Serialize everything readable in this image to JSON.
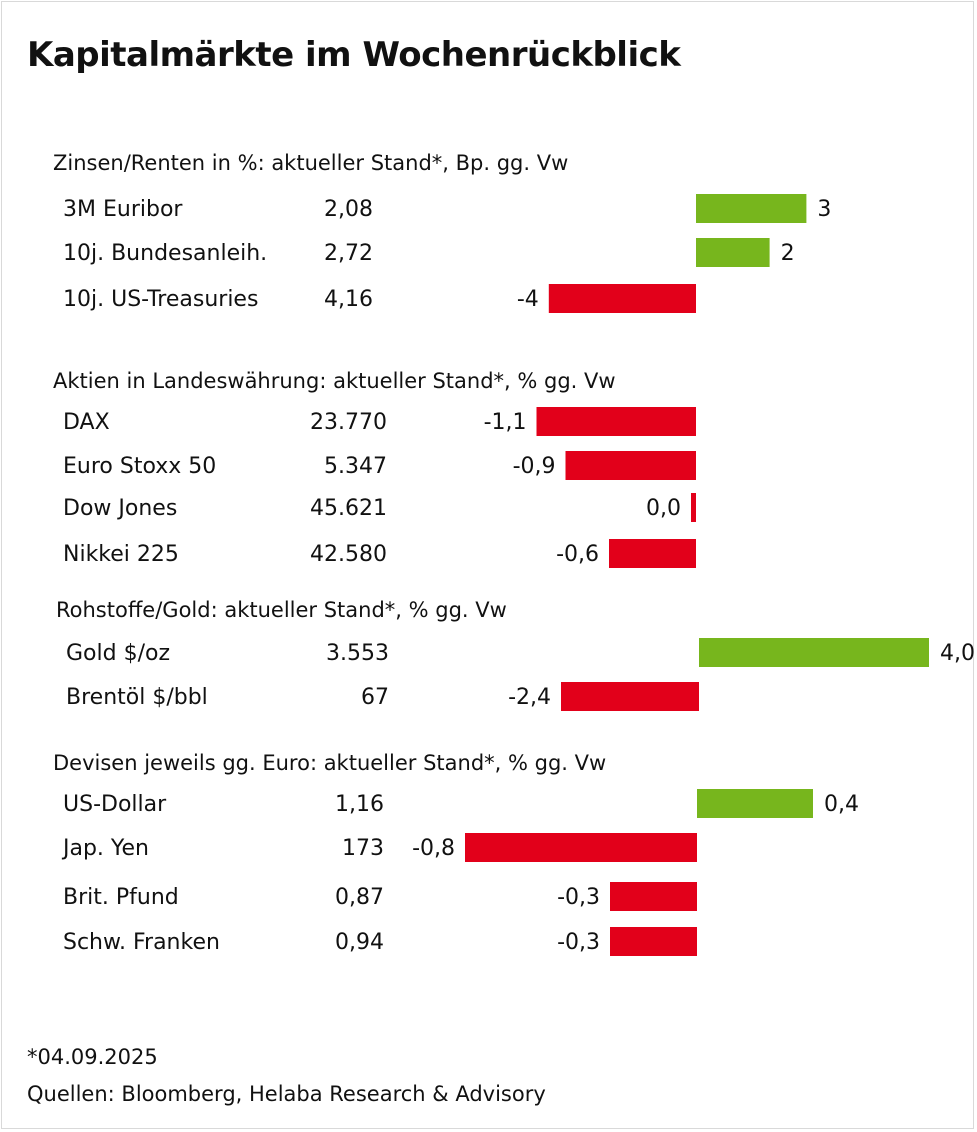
{
  "title": "Kapitalmärkte im Wochenrückblick",
  "footnote": "*04.09.2025",
  "source": "Quellen: Bloomberg, Helaba Research & Advisory",
  "colors": {
    "positive": "#77b61d",
    "negative": "#e2001a",
    "text": "#111111"
  },
  "chart_data": {
    "type": "bar",
    "orientation": "horizontal",
    "sections": [
      {
        "header": "Zinsen/Renten in %: aktueller Stand*, Bp. gg. Vw",
        "rows": [
          {
            "label": "3M Euribor",
            "level": "2,08",
            "change": 3,
            "change_label": "3"
          },
          {
            "label": "10j. Bundesanleih.",
            "level": "2,72",
            "change": 2,
            "change_label": "2"
          },
          {
            "label": "10j. US-Treasuries",
            "level": "4,16",
            "change": -4,
            "change_label": "-4"
          }
        ]
      },
      {
        "header": "Aktien in Landeswährung: aktueller Stand*, % gg. Vw",
        "rows": [
          {
            "label": "DAX",
            "level": "23.770",
            "change": -1.1,
            "change_label": "-1,1"
          },
          {
            "label": "Euro Stoxx 50",
            "level": "5.347",
            "change": -0.9,
            "change_label": "-0,9"
          },
          {
            "label": "Dow Jones",
            "level": "45.621",
            "change": -0.03,
            "change_label": "0,0"
          },
          {
            "label": "Nikkei 225",
            "level": "42.580",
            "change": -0.6,
            "change_label": "-0,6"
          }
        ]
      },
      {
        "header": "Rohstoffe/Gold: aktueller Stand*, % gg. Vw",
        "rows": [
          {
            "label": "Gold $/oz",
            "level": "3.553",
            "change": 4.0,
            "change_label": "4,0"
          },
          {
            "label": "Brentöl $/bbl",
            "level": "67",
            "change": -2.4,
            "change_label": "-2,4"
          }
        ]
      },
      {
        "header": "Devisen jeweils gg. Euro: aktueller Stand*, % gg. Vw",
        "rows": [
          {
            "label": "US-Dollar",
            "level": "1,16",
            "change": 0.4,
            "change_label": "0,4"
          },
          {
            "label": "Jap. Yen",
            "level": "173",
            "change": -0.8,
            "change_label": "-0,8"
          },
          {
            "label": "Brit. Pfund",
            "level": "0,87",
            "change": -0.3,
            "change_label": "-0,3"
          },
          {
            "label": "Schw. Franken",
            "level": "0,94",
            "change": -0.3,
            "change_label": "-0,3"
          }
        ]
      }
    ]
  }
}
